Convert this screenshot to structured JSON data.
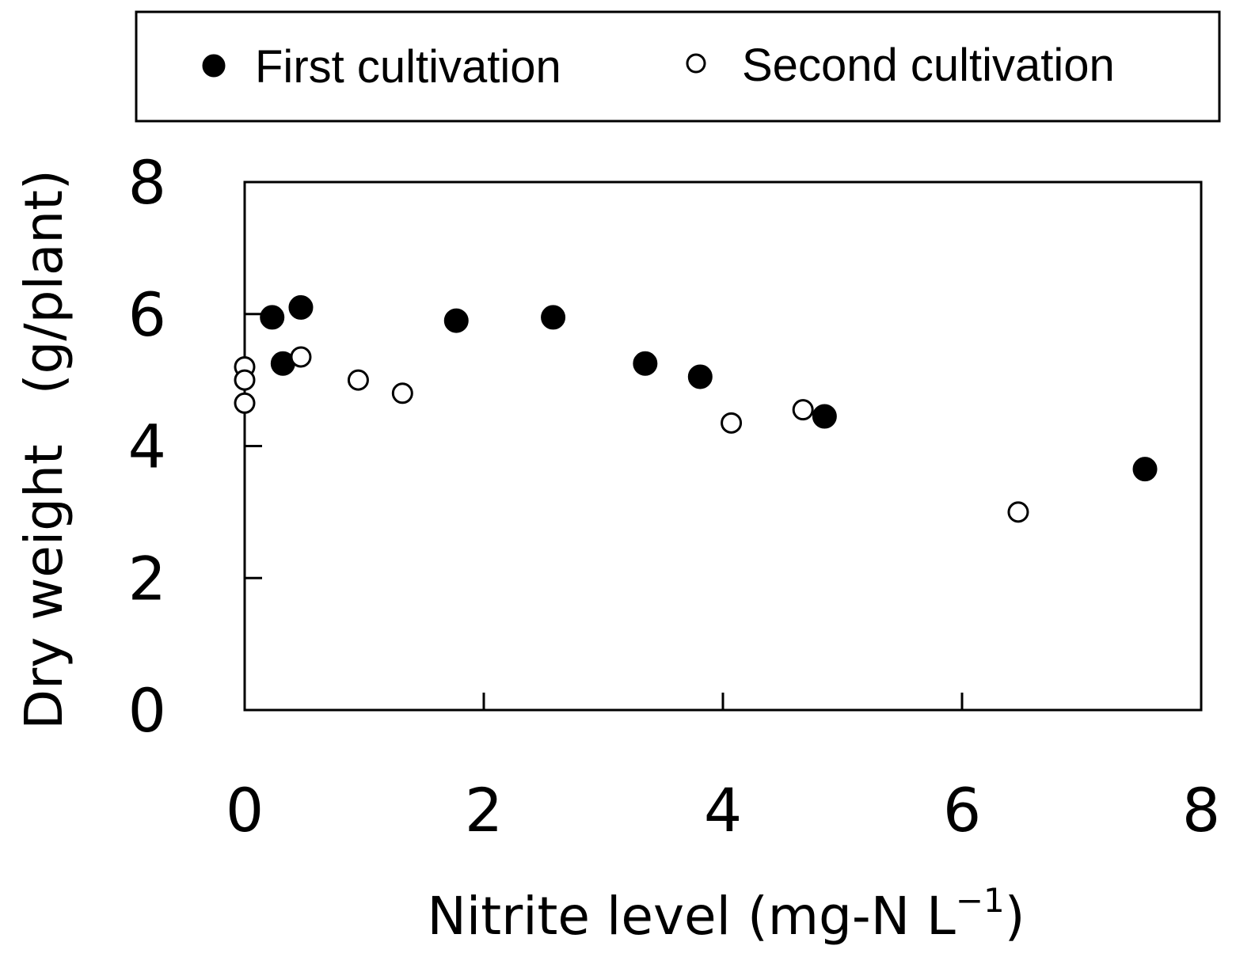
{
  "chart_data": {
    "type": "scatter",
    "title": "",
    "xlabel": "Nitrite level (mg-N L",
    "xlabel_superscript": "−1",
    "xlabel_close": ")",
    "ylabel": "Dry weight   (g/plant)",
    "xlim": [
      0,
      8
    ],
    "ylim": [
      0,
      8
    ],
    "xticks": [
      0,
      2,
      4,
      6,
      8
    ],
    "yticks": [
      0,
      2,
      4,
      6,
      8
    ],
    "xtick_labels": [
      "0",
      "2",
      "4",
      "6",
      "8"
    ],
    "ytick_labels": [
      "0",
      "2",
      "4",
      "6",
      "8"
    ],
    "grid": false,
    "legend": {
      "placement": "top",
      "entries": [
        "First cultivation",
        "Second cultivation"
      ]
    },
    "series": [
      {
        "name": "First cultivation",
        "marker": "filled-circle",
        "color": "#000000",
        "points": [
          {
            "x": 0.23,
            "y": 5.95
          },
          {
            "x": 0.32,
            "y": 5.25
          },
          {
            "x": 0.47,
            "y": 6.1
          },
          {
            "x": 1.77,
            "y": 5.9
          },
          {
            "x": 2.58,
            "y": 5.95
          },
          {
            "x": 3.35,
            "y": 5.25
          },
          {
            "x": 3.81,
            "y": 5.05
          },
          {
            "x": 4.85,
            "y": 4.45
          },
          {
            "x": 7.53,
            "y": 3.65
          }
        ]
      },
      {
        "name": "Second cultivation",
        "marker": "open-circle",
        "color": "#000000",
        "points": [
          {
            "x": 0.0,
            "y": 5.2
          },
          {
            "x": 0.0,
            "y": 5.0
          },
          {
            "x": 0.0,
            "y": 4.65
          },
          {
            "x": 0.47,
            "y": 5.35
          },
          {
            "x": 0.95,
            "y": 5.0
          },
          {
            "x": 1.32,
            "y": 4.8
          },
          {
            "x": 4.07,
            "y": 4.35
          },
          {
            "x": 4.67,
            "y": 4.55
          },
          {
            "x": 6.47,
            "y": 3.0
          }
        ]
      }
    ]
  }
}
